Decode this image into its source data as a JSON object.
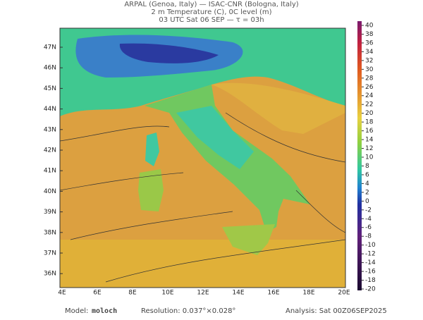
{
  "header": {
    "line1": "ARPAL (Genoa, Italy)  —  ISAC-CNR (Bologna, Italy)",
    "line2": "2 m Temperature (C), 0C level (m)",
    "line3": "03 UTC Sat 06 SEP  —  τ = 03h"
  },
  "map": {
    "lat_labels": [
      "47N",
      "46N",
      "45N",
      "44N",
      "43N",
      "42N",
      "41N",
      "40N",
      "39N",
      "38N",
      "37N",
      "36N"
    ],
    "lon_labels": [
      "4E",
      "6E",
      "8E",
      "10E",
      "12E",
      "14E",
      "16E",
      "18E",
      "20E"
    ]
  },
  "colorbar": {
    "ticks": [
      40,
      38,
      36,
      34,
      32,
      30,
      28,
      26,
      24,
      22,
      20,
      18,
      16,
      14,
      12,
      10,
      8,
      6,
      4,
      2,
      0,
      -2,
      -4,
      -6,
      -8,
      -10,
      -12,
      -14,
      -16,
      -18,
      -20
    ]
  },
  "footer": {
    "model_label": "Model:",
    "model": "moloch",
    "resolution": "Resolution: 0.037°×0.028°",
    "analysis": "Analysis: Sat 00Z06SEP2025"
  }
}
